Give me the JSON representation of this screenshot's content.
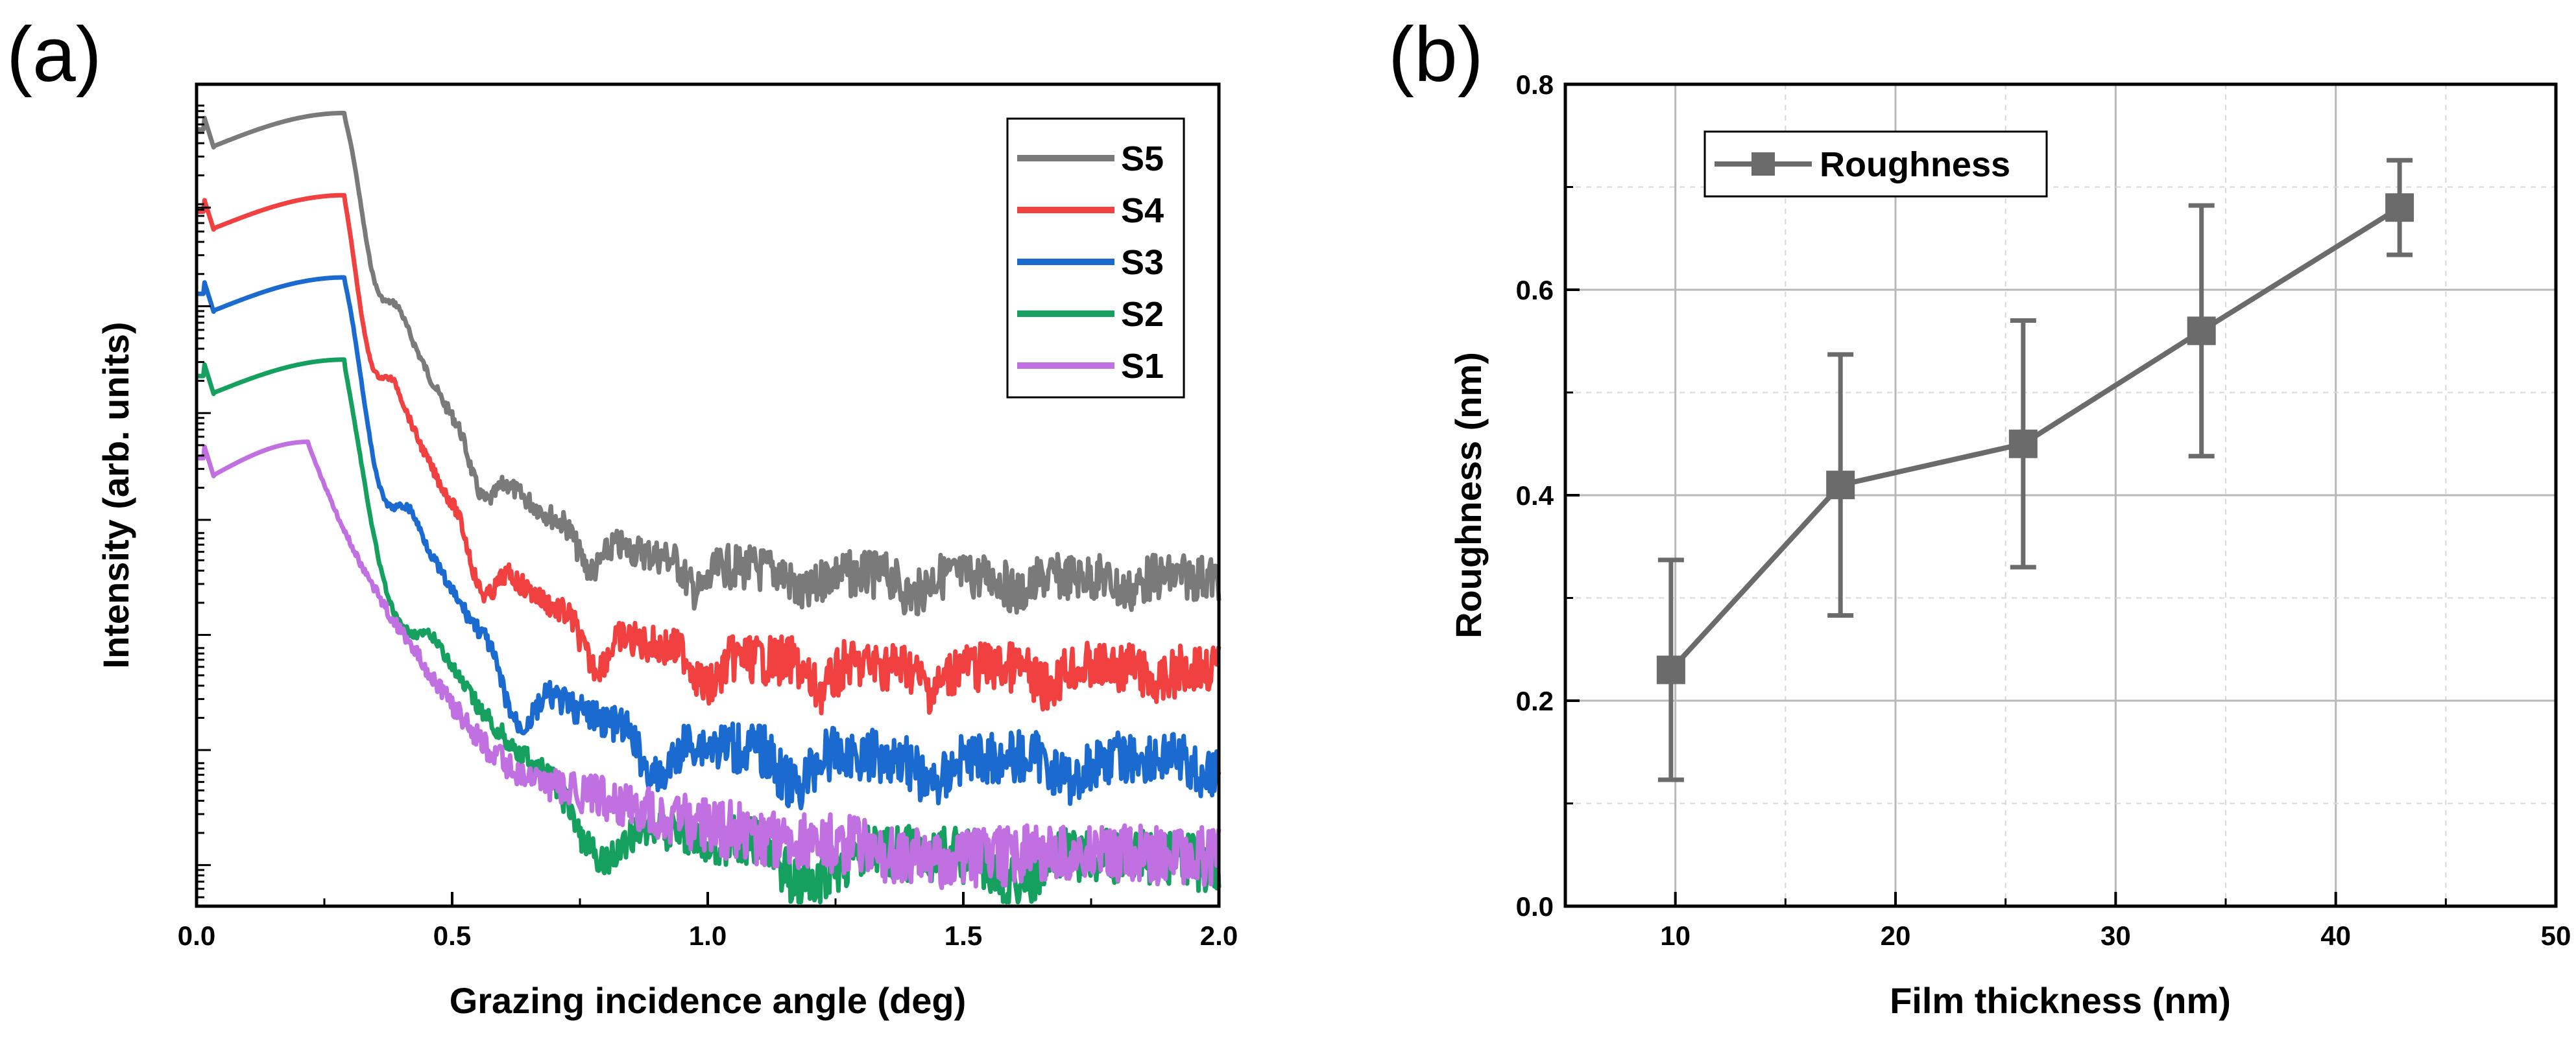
{
  "chart_data": [
    {
      "panel_label": "(a)",
      "type": "line",
      "title": "",
      "xlabel": "Grazing incidence angle (deg)",
      "ylabel": "Intensity (arb. units)",
      "xlim": [
        0,
        2.0
      ],
      "x_ticks": [
        "0.0",
        "0.5",
        "1.0",
        "1.5",
        "2.0"
      ],
      "y_scale": "log (offset curves, no tick labels)",
      "legend_position": "top-right",
      "grid": false,
      "series": [
        {
          "name": "S5",
          "color": "#7a7a7a",
          "baseline": 0.0,
          "period": 0.105,
          "first_min": 0.35,
          "depth": 0.34,
          "plateau_end": 0.29,
          "phase": 0.0,
          "decay": 0.2,
          "tail": 0.56,
          "noise": 0.028
        },
        {
          "name": "S4",
          "color": "#f04040",
          "baseline": 0.1,
          "period": 0.11,
          "first_min": 0.34,
          "depth": 0.4,
          "plateau_end": 0.29,
          "phase": 0.0,
          "decay": 0.2,
          "tail": 0.57,
          "noise": 0.03
        },
        {
          "name": "S3",
          "color": "#1a6ad0",
          "baseline": 0.2,
          "period": 0.135,
          "first_min": 0.36,
          "depth": 0.48,
          "plateau_end": 0.29,
          "phase": 0.0,
          "decay": 0.2,
          "tail": 0.58,
          "noise": 0.032
        },
        {
          "name": "S2",
          "color": "#16a060",
          "baseline": 0.3,
          "period": 0.205,
          "first_min": 0.38,
          "depth": 0.55,
          "plateau_end": 0.29,
          "phase": 0.0,
          "decay": 0.22,
          "tail": 0.6,
          "noise": 0.034
        },
        {
          "name": "S1",
          "color": "#c070e0",
          "baseline": 0.4,
          "period": 0.42,
          "first_min": 0.62,
          "depth": 0.2,
          "plateau_end": 0.22,
          "phase": 0.0,
          "decay": 0.3,
          "tail": 0.5,
          "noise": 0.036
        }
      ]
    },
    {
      "panel_label": "(b)",
      "type": "line",
      "title": "",
      "xlabel": "Film thickness (nm)",
      "ylabel": "Roughness (nm)",
      "xlim": [
        5,
        50
      ],
      "ylim": [
        0.0,
        0.8
      ],
      "x_ticks": [
        "10",
        "20",
        "30",
        "40",
        "50"
      ],
      "y_ticks": [
        "0.0",
        "0.2",
        "0.4",
        "0.6",
        "0.8"
      ],
      "grid": true,
      "legend_position": "top-left",
      "series": [
        {
          "name": "Roughness",
          "color": "#6b6b6b",
          "x": [
            9.8,
            17.5,
            25.8,
            33.9,
            42.9
          ],
          "y": [
            0.23,
            0.41,
            0.45,
            0.56,
            0.68
          ],
          "err": [
            0.107,
            0.127,
            0.12,
            0.122,
            0.046
          ]
        }
      ]
    }
  ]
}
